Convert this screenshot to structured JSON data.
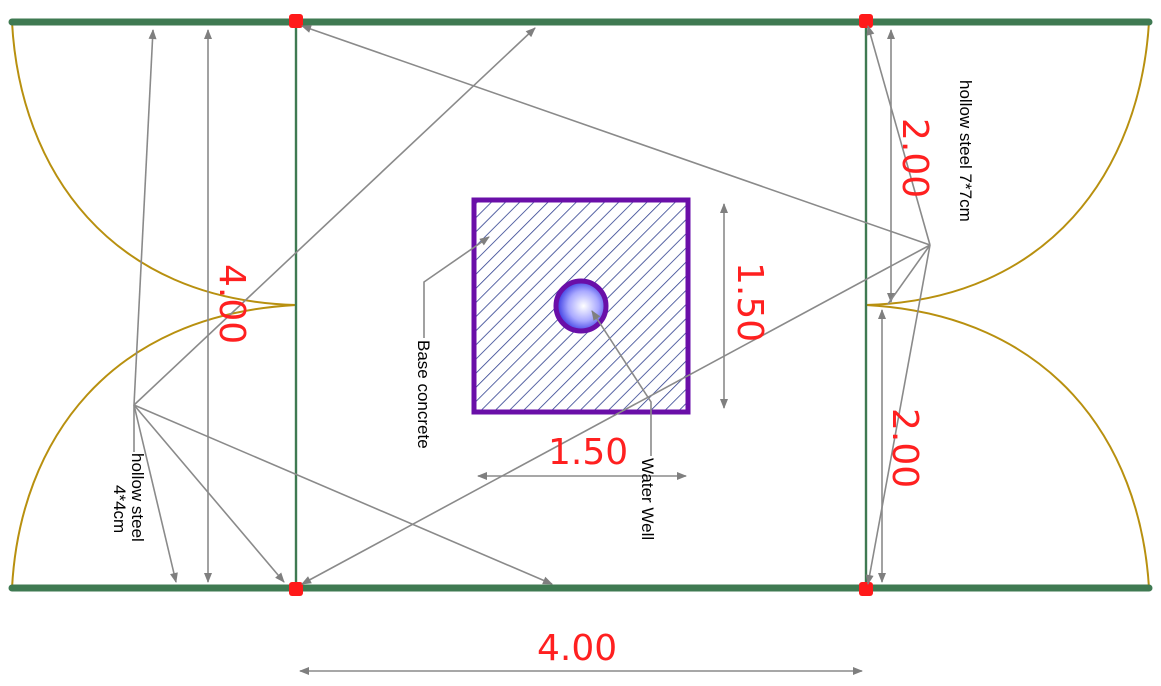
{
  "dimensions": {
    "top_left_height": "4.00",
    "right_upper": "2.00",
    "right_lower": "2.00",
    "base_height": "1.50",
    "base_width": "1.50",
    "bottom_width": "4.00"
  },
  "labels": {
    "hollow_steel_7": "hollow steel 7*7cm",
    "hollow_steel_4_line1": "hollow steel",
    "hollow_steel_4_line2": "4*4cm",
    "base_concrete": "Base concrete",
    "water_well": "Water Well"
  },
  "colors": {
    "steel": "#3f7a52",
    "dimension_text": "#ff2020",
    "gate_arc": "#b8900f",
    "base_outline": "#6a0fa8",
    "hatch": "#2f3f8f",
    "post": "#ff1a1a"
  }
}
